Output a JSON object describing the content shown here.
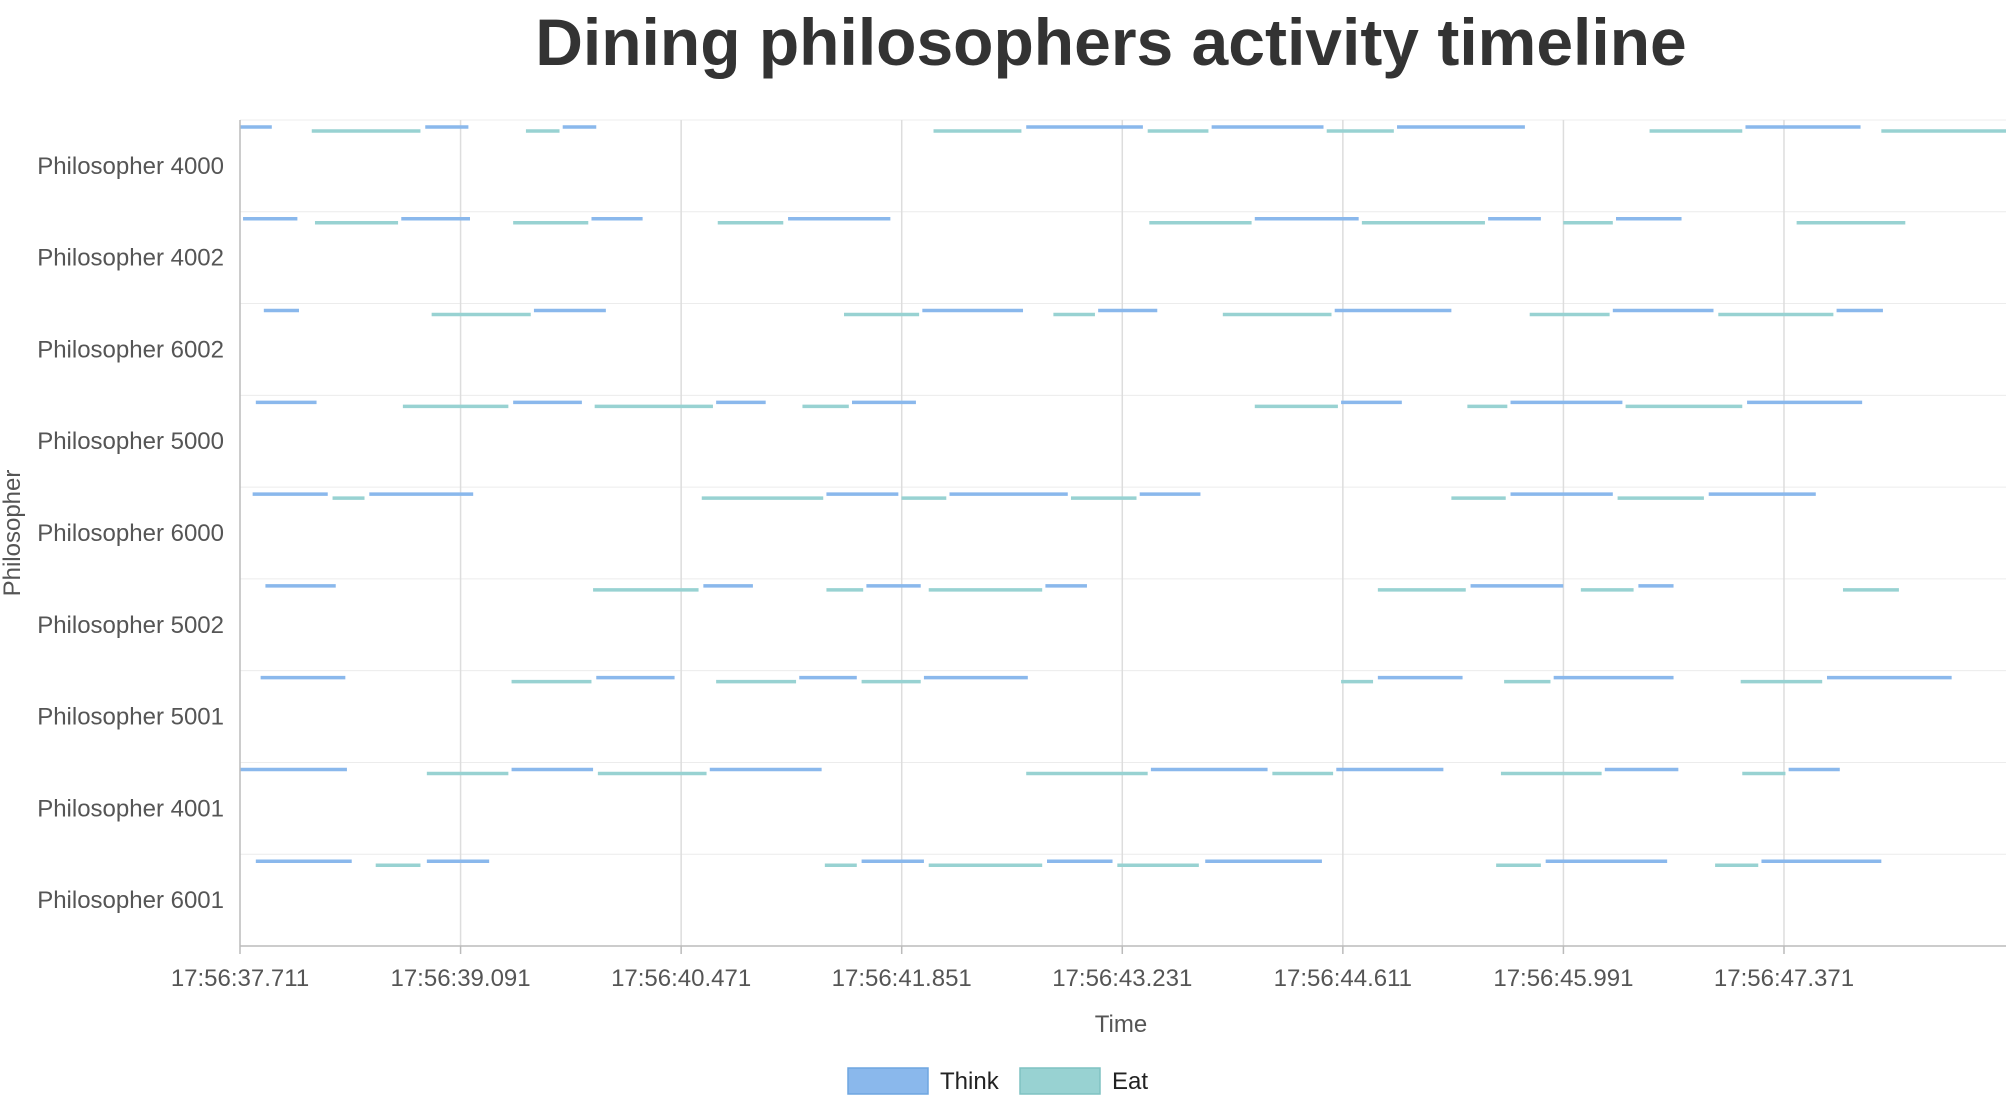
{
  "chart_data": {
    "type": "timeline",
    "title": "Dining philosophers activity timeline",
    "xlabel": "Time",
    "ylabel": "Philosopher",
    "x_axis": {
      "start_seconds": 37.711,
      "end_seconds": 48.76,
      "tick_step_seconds": 1.38,
      "tick_labels": [
        "17:56:37.711",
        "17:56:39.091",
        "17:56:40.471",
        "17:56:41.851",
        "17:56:43.231",
        "17:56:44.611",
        "17:56:45.991",
        "17:56:47.371"
      ]
    },
    "grid": true,
    "legend_position": "bottom-center",
    "series": [
      {
        "name": "Think",
        "color": "#8ab8ec"
      },
      {
        "name": "Eat",
        "color": "#98d2d2"
      }
    ],
    "rows": [
      {
        "name": "Philosopher 4000",
        "segments": [
          [
            "Think",
            37.71,
            37.91
          ],
          [
            "Eat",
            38.16,
            38.84
          ],
          [
            "Think",
            38.87,
            39.14
          ],
          [
            "Eat",
            39.5,
            39.71
          ],
          [
            "Think",
            39.73,
            39.94
          ],
          [
            "Eat",
            42.05,
            42.6
          ],
          [
            "Think",
            42.63,
            43.36
          ],
          [
            "Eat",
            43.39,
            43.77
          ],
          [
            "Think",
            43.79,
            44.49
          ],
          [
            "Eat",
            44.51,
            44.93
          ],
          [
            "Think",
            44.95,
            45.75
          ],
          [
            "Eat",
            46.53,
            47.11
          ],
          [
            "Think",
            47.13,
            47.85
          ],
          [
            "Eat",
            47.98,
            48.76
          ]
        ]
      },
      {
        "name": "Philosopher 4002",
        "segments": [
          [
            "Think",
            37.73,
            38.07
          ],
          [
            "Eat",
            38.18,
            38.7
          ],
          [
            "Think",
            38.72,
            39.15
          ],
          [
            "Eat",
            39.42,
            39.89
          ],
          [
            "Think",
            39.91,
            40.23
          ],
          [
            "Eat",
            40.7,
            41.11
          ],
          [
            "Think",
            41.14,
            41.78
          ],
          [
            "Eat",
            43.4,
            44.04
          ],
          [
            "Think",
            44.06,
            44.71
          ],
          [
            "Eat",
            44.73,
            45.5
          ],
          [
            "Think",
            45.52,
            45.85
          ],
          [
            "Eat",
            45.99,
            46.3
          ],
          [
            "Think",
            46.32,
            46.73
          ],
          [
            "Eat",
            47.45,
            48.13
          ]
        ]
      },
      {
        "name": "Philosopher 6002",
        "segments": [
          [
            "Think",
            37.86,
            38.08
          ],
          [
            "Eat",
            38.91,
            39.53
          ],
          [
            "Think",
            39.55,
            40.0
          ],
          [
            "Eat",
            41.49,
            41.96
          ],
          [
            "Think",
            41.98,
            42.61
          ],
          [
            "Eat",
            42.8,
            43.06
          ],
          [
            "Think",
            43.08,
            43.45
          ],
          [
            "Eat",
            43.86,
            44.54
          ],
          [
            "Think",
            44.56,
            45.29
          ],
          [
            "Eat",
            45.78,
            46.28
          ],
          [
            "Think",
            46.3,
            46.93
          ],
          [
            "Eat",
            46.96,
            47.68
          ],
          [
            "Think",
            47.7,
            47.99
          ]
        ]
      },
      {
        "name": "Philosopher 5000",
        "segments": [
          [
            "Think",
            37.81,
            38.19
          ],
          [
            "Eat",
            38.73,
            39.39
          ],
          [
            "Think",
            39.42,
            39.85
          ],
          [
            "Eat",
            39.93,
            40.67
          ],
          [
            "Think",
            40.69,
            41.0
          ],
          [
            "Eat",
            41.23,
            41.52
          ],
          [
            "Think",
            41.54,
            41.94
          ],
          [
            "Eat",
            44.06,
            44.58
          ],
          [
            "Think",
            44.6,
            44.98
          ],
          [
            "Eat",
            45.39,
            45.64
          ],
          [
            "Think",
            45.66,
            46.36
          ],
          [
            "Eat",
            46.38,
            47.11
          ],
          [
            "Think",
            47.14,
            47.86
          ]
        ]
      },
      {
        "name": "Philosopher 6000",
        "segments": [
          [
            "Think",
            37.79,
            38.26
          ],
          [
            "Eat",
            38.29,
            38.49
          ],
          [
            "Think",
            38.52,
            39.17
          ],
          [
            "Eat",
            40.6,
            41.36
          ],
          [
            "Think",
            41.38,
            41.83
          ],
          [
            "Eat",
            41.85,
            42.13
          ],
          [
            "Think",
            42.15,
            42.89
          ],
          [
            "Eat",
            42.91,
            43.32
          ],
          [
            "Think",
            43.34,
            43.72
          ],
          [
            "Eat",
            45.29,
            45.63
          ],
          [
            "Think",
            45.66,
            46.3
          ],
          [
            "Eat",
            46.33,
            46.87
          ],
          [
            "Think",
            46.9,
            47.57
          ]
        ]
      },
      {
        "name": "Philosopher 5002",
        "segments": [
          [
            "Think",
            37.87,
            38.31
          ],
          [
            "Eat",
            39.92,
            40.58
          ],
          [
            "Think",
            40.61,
            40.92
          ],
          [
            "Eat",
            41.38,
            41.61
          ],
          [
            "Think",
            41.63,
            41.97
          ],
          [
            "Eat",
            42.02,
            42.73
          ],
          [
            "Think",
            42.75,
            43.01
          ],
          [
            "Eat",
            44.83,
            45.38
          ],
          [
            "Think",
            45.41,
            45.99
          ],
          [
            "Eat",
            46.1,
            46.43
          ],
          [
            "Think",
            46.46,
            46.68
          ],
          [
            "Eat",
            47.74,
            48.09
          ]
        ]
      },
      {
        "name": "Philosopher 5001",
        "segments": [
          [
            "Think",
            37.84,
            38.37
          ],
          [
            "Eat",
            39.41,
            39.91
          ],
          [
            "Think",
            39.94,
            40.43
          ],
          [
            "Eat",
            40.69,
            41.19
          ],
          [
            "Think",
            41.21,
            41.57
          ],
          [
            "Eat",
            41.6,
            41.97
          ],
          [
            "Think",
            41.99,
            42.64
          ],
          [
            "Eat",
            44.6,
            44.8
          ],
          [
            "Think",
            44.83,
            45.36
          ],
          [
            "Eat",
            45.62,
            45.91
          ],
          [
            "Think",
            45.93,
            46.68
          ],
          [
            "Eat",
            47.1,
            47.61
          ],
          [
            "Think",
            47.64,
            48.42
          ]
        ]
      },
      {
        "name": "Philosopher 4001",
        "segments": [
          [
            "Think",
            37.71,
            38.38
          ],
          [
            "Eat",
            38.88,
            39.39
          ],
          [
            "Think",
            39.41,
            39.92
          ],
          [
            "Eat",
            39.95,
            40.63
          ],
          [
            "Think",
            40.65,
            41.35
          ],
          [
            "Eat",
            42.63,
            43.39
          ],
          [
            "Think",
            43.41,
            44.14
          ],
          [
            "Eat",
            44.17,
            44.55
          ],
          [
            "Think",
            44.57,
            45.24
          ],
          [
            "Eat",
            45.6,
            46.23
          ],
          [
            "Think",
            46.25,
            46.71
          ],
          [
            "Eat",
            47.11,
            47.38
          ],
          [
            "Think",
            47.4,
            47.72
          ]
        ]
      },
      {
        "name": "Philosopher 6001",
        "segments": [
          [
            "Think",
            37.81,
            38.41
          ],
          [
            "Eat",
            38.56,
            38.84
          ],
          [
            "Think",
            38.88,
            39.27
          ],
          [
            "Eat",
            41.37,
            41.57
          ],
          [
            "Think",
            41.6,
            41.99
          ],
          [
            "Eat",
            42.02,
            42.73
          ],
          [
            "Think",
            42.76,
            43.17
          ],
          [
            "Eat",
            43.2,
            43.71
          ],
          [
            "Think",
            43.75,
            44.48
          ],
          [
            "Eat",
            45.57,
            45.85
          ],
          [
            "Think",
            45.88,
            46.64
          ],
          [
            "Eat",
            46.94,
            47.21
          ],
          [
            "Think",
            47.23,
            47.98
          ]
        ]
      }
    ]
  }
}
